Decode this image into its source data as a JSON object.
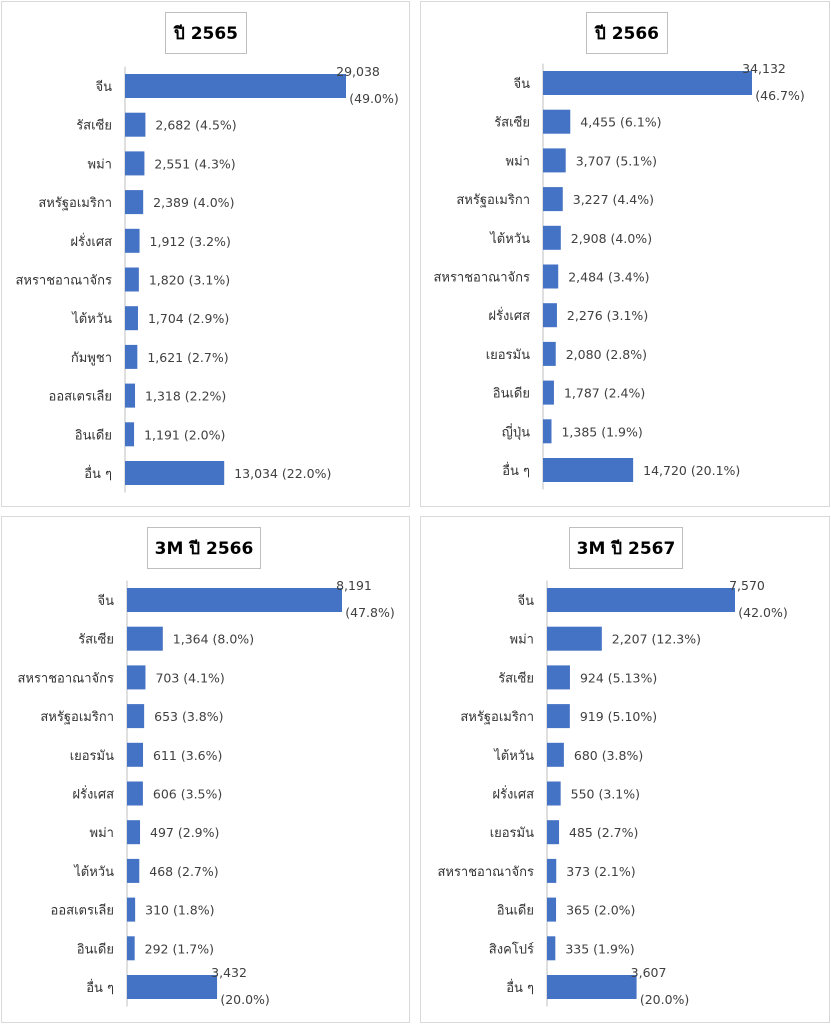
{
  "chart_data": [
    {
      "type": "bar",
      "orientation": "horizontal",
      "title": "ปี 2565",
      "categories": [
        "จีน",
        "รัสเซีย",
        "พม่า",
        "สหรัฐอเมริกา",
        "ฝรั่งเศส",
        "สหราชอาณาจักร",
        "ไต้หวัน",
        "กัมพูชา",
        "ออสเตรเลีย",
        "อินเดีย",
        "อื่น ๆ"
      ],
      "values": [
        29038,
        2682,
        2551,
        2389,
        1912,
        1820,
        1704,
        1621,
        1318,
        1191,
        13034
      ],
      "value_labels": [
        "29,038",
        "2,682",
        "2,551",
        "2,389",
        "1,912",
        "1,820",
        "1,704",
        "1,621",
        "1,318",
        "1,191",
        "13,034"
      ],
      "percent_labels": [
        "(49.0%)",
        "(4.5%)",
        "(4.3%)",
        "(4.0%)",
        "(3.2%)",
        "(3.1%)",
        "(2.9%)",
        "(2.7%)",
        "(2.2%)",
        "(2.0%)",
        "(22.0%)"
      ],
      "color": "#4472c4",
      "grid": false
    },
    {
      "type": "bar",
      "orientation": "horizontal",
      "title": "ปี 2566",
      "categories": [
        "จีน",
        "รัสเซีย",
        "พม่า",
        "สหรัฐอเมริกา",
        "ไต้หวัน",
        "สหราชอาณาจักร",
        "ฝรั่งเศส",
        "เยอรมัน",
        "อินเดีย",
        "ญี่ปุ่น",
        "อื่น ๆ"
      ],
      "values": [
        34132,
        4455,
        3707,
        3227,
        2908,
        2484,
        2276,
        2080,
        1787,
        1385,
        14720
      ],
      "value_labels": [
        "34,132",
        "4,455",
        "3,707",
        "3,227",
        "2,908",
        "2,484",
        "2,276",
        "2,080",
        "1,787",
        "1,385",
        "14,720"
      ],
      "percent_labels": [
        "(46.7%)",
        "(6.1%)",
        "(5.1%)",
        "(4.4%)",
        "(4.0%)",
        "(3.4%)",
        "(3.1%)",
        "(2.8%)",
        "(2.4%)",
        "(1.9%)",
        "(20.1%)"
      ],
      "color": "#4472c4",
      "grid": false
    },
    {
      "type": "bar",
      "orientation": "horizontal",
      "title": "3M ปี 2566",
      "categories": [
        "จีน",
        "รัสเซีย",
        "สหราชอาณาจักร",
        "สหรัฐอเมริกา",
        "เยอรมัน",
        "ฝรั่งเศส",
        "พม่า",
        "ไต้หวัน",
        "ออสเตรเลีย",
        "อินเดีย",
        "อื่น ๆ"
      ],
      "values": [
        8191,
        1364,
        703,
        653,
        611,
        606,
        497,
        468,
        310,
        292,
        3432
      ],
      "value_labels": [
        "8,191",
        "1,364",
        "703",
        "653",
        "611",
        "606",
        "497",
        "468",
        "310",
        "292",
        "3,432"
      ],
      "percent_labels": [
        "(47.8%)",
        "(8.0%)",
        "(4.1%)",
        "(3.8%)",
        "(3.6%)",
        "(3.5%)",
        "(2.9%)",
        "(2.7%)",
        "(1.8%)",
        "(1.7%)",
        "(20.0%)"
      ],
      "color": "#4472c4",
      "grid": false
    },
    {
      "type": "bar",
      "orientation": "horizontal",
      "title": "3M ปี 2567",
      "categories": [
        "จีน",
        "พม่า",
        "รัสเซีย",
        "สหรัฐอเมริกา",
        "ไต้หวัน",
        "ฝรั่งเศส",
        "เยอรมัน",
        "สหราชอาณาจักร",
        "อินเดีย",
        "สิงคโปร์",
        "อื่น ๆ"
      ],
      "values": [
        7570,
        2207,
        924,
        919,
        680,
        550,
        485,
        373,
        365,
        335,
        3607
      ],
      "value_labels": [
        "7,570",
        "2,207",
        "924",
        "919",
        "680",
        "550",
        "485",
        "373",
        "365",
        "335",
        "3,607"
      ],
      "percent_labels": [
        "(42.0%)",
        "(12.3%)",
        "(5.13%)",
        "(5.10%)",
        "(3.8%)",
        "(3.1%)",
        "(2.7%)",
        "(2.1%)",
        "(2.0%)",
        "(1.9%)",
        "(20.0%)"
      ],
      "color": "#4472c4",
      "grid": false
    }
  ]
}
